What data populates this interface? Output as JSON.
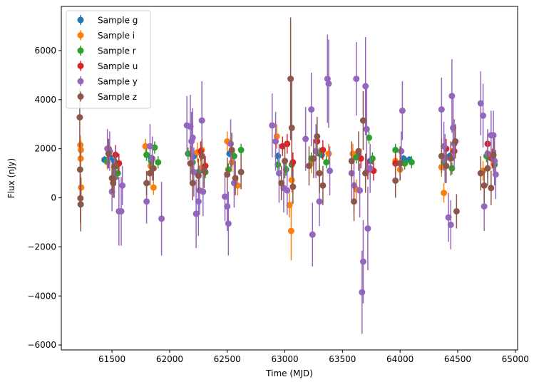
{
  "chart_data": {
    "type": "scatter",
    "title": "",
    "xlabel": "Time (MJD)",
    "ylabel": "Flux (nJy)",
    "xlim": [
      61060,
      65020
    ],
    "ylim": [
      -6200,
      7800
    ],
    "xticks": [
      61500,
      62000,
      62500,
      63000,
      63500,
      64000,
      64500,
      65000
    ],
    "yticks": [
      -6000,
      -4000,
      -2000,
      0,
      2000,
      4000,
      6000
    ],
    "grid": false,
    "legend_position": "top-left",
    "error_bars": true,
    "series": [
      {
        "name": "Sample g",
        "color": "#1f77b4",
        "points": [
          [
            61435,
            1550,
            150
          ],
          [
            61480,
            1650,
            150
          ],
          [
            61520,
            1500,
            150
          ],
          [
            61840,
            1600,
            150
          ],
          [
            62210,
            1700,
            150
          ],
          [
            62520,
            1800,
            150
          ],
          [
            62940,
            1700,
            150
          ],
          [
            63250,
            1600,
            150
          ],
          [
            63320,
            1750,
            150
          ],
          [
            63630,
            1800,
            150
          ],
          [
            63740,
            1500,
            150
          ],
          [
            64030,
            1600,
            150
          ],
          [
            64080,
            1550,
            150
          ],
          [
            64430,
            1700,
            150
          ],
          [
            64780,
            1650,
            150
          ]
        ]
      },
      {
        "name": "Sample i",
        "color": "#ff7f0e",
        "points": [
          [
            61225,
            2150,
            400
          ],
          [
            61230,
            1950,
            400
          ],
          [
            61228,
            1600,
            400
          ],
          [
            61232,
            420,
            400
          ],
          [
            61460,
            1450,
            300
          ],
          [
            61520,
            1250,
            300
          ],
          [
            61560,
            1400,
            300
          ],
          [
            61790,
            2100,
            300
          ],
          [
            61835,
            1300,
            300
          ],
          [
            61860,
            420,
            300
          ],
          [
            62240,
            1850,
            400
          ],
          [
            62280,
            1950,
            400
          ],
          [
            62270,
            1200,
            400
          ],
          [
            62500,
            2300,
            400
          ],
          [
            62540,
            1450,
            400
          ],
          [
            62590,
            500,
            400
          ],
          [
            62930,
            2500,
            500
          ],
          [
            63040,
            -300,
            500
          ],
          [
            63055,
            -1350,
            1200
          ],
          [
            63060,
            720,
            500
          ],
          [
            63230,
            1400,
            400
          ],
          [
            63300,
            1000,
            400
          ],
          [
            63380,
            1800,
            400
          ],
          [
            63590,
            1800,
            400
          ],
          [
            63620,
            350,
            400
          ],
          [
            63700,
            1000,
            400
          ],
          [
            63960,
            1500,
            400
          ],
          [
            64000,
            1150,
            400
          ],
          [
            64360,
            1250,
            400
          ],
          [
            64380,
            200,
            400
          ],
          [
            64460,
            1900,
            400
          ],
          [
            64720,
            1100,
            400
          ],
          [
            64790,
            1700,
            400
          ]
        ]
      },
      {
        "name": "Sample r",
        "color": "#2ca02c",
        "points": [
          [
            61460,
            1500,
            250
          ],
          [
            61520,
            1250,
            250
          ],
          [
            61550,
            1000,
            250
          ],
          [
            61800,
            1750,
            250
          ],
          [
            61840,
            1500,
            250
          ],
          [
            61870,
            2050,
            250
          ],
          [
            61900,
            1450,
            250
          ],
          [
            62160,
            1800,
            250
          ],
          [
            62200,
            1450,
            250
          ],
          [
            62250,
            1050,
            250
          ],
          [
            62310,
            1050,
            250
          ],
          [
            62510,
            1150,
            250
          ],
          [
            62560,
            1700,
            250
          ],
          [
            62620,
            1950,
            250
          ],
          [
            62940,
            1350,
            250
          ],
          [
            63010,
            1150,
            250
          ],
          [
            63060,
            1350,
            250
          ],
          [
            63230,
            1600,
            250
          ],
          [
            63300,
            1800,
            250
          ],
          [
            63360,
            1450,
            250
          ],
          [
            63620,
            1650,
            250
          ],
          [
            63730,
            2450,
            250
          ],
          [
            63760,
            1600,
            250
          ],
          [
            63960,
            1950,
            250
          ],
          [
            64040,
            1400,
            250
          ],
          [
            64100,
            1450,
            250
          ],
          [
            64380,
            1450,
            250
          ],
          [
            64450,
            1200,
            250
          ],
          [
            64750,
            1700,
            250
          ],
          [
            64820,
            1350,
            250
          ]
        ]
      },
      {
        "name": "Sample u",
        "color": "#d62728",
        "points": [
          [
            61470,
            2000,
            400
          ],
          [
            61530,
            1750,
            400
          ],
          [
            61560,
            1400,
            400
          ],
          [
            62270,
            1900,
            400
          ],
          [
            62310,
            1300,
            400
          ],
          [
            62980,
            2100,
            400
          ],
          [
            63020,
            2200,
            400
          ],
          [
            63070,
            1450,
            400
          ],
          [
            63280,
            2300,
            400
          ],
          [
            63330,
            1950,
            400
          ],
          [
            63660,
            1600,
            400
          ],
          [
            63720,
            1150,
            400
          ],
          [
            63770,
            1100,
            400
          ],
          [
            63960,
            1400,
            400
          ],
          [
            64400,
            2000,
            400
          ],
          [
            64470,
            1900,
            400
          ],
          [
            64760,
            2200,
            400
          ],
          [
            64800,
            1600,
            400
          ]
        ]
      },
      {
        "name": "Sample y",
        "color": "#9467bd",
        "points": [
          [
            61460,
            2000,
            800
          ],
          [
            61480,
            1900,
            800
          ],
          [
            61500,
            250,
            800
          ],
          [
            61520,
            800,
            800
          ],
          [
            61530,
            1300,
            800
          ],
          [
            61560,
            -550,
            1400
          ],
          [
            61580,
            -550,
            1400
          ],
          [
            61590,
            500,
            800
          ],
          [
            61800,
            -150,
            900
          ],
          [
            61830,
            2100,
            900
          ],
          [
            61850,
            1600,
            900
          ],
          [
            61930,
            -850,
            1500
          ],
          [
            62150,
            2950,
            1200
          ],
          [
            62180,
            2900,
            1300
          ],
          [
            62190,
            2300,
            1200
          ],
          [
            62200,
            2450,
            1200
          ],
          [
            62210,
            1050,
            1000
          ],
          [
            62230,
            -650,
            1400
          ],
          [
            62250,
            -150,
            1400
          ],
          [
            62260,
            300,
            1000
          ],
          [
            62280,
            3150,
            1600
          ],
          [
            62290,
            250,
            1000
          ],
          [
            62480,
            50,
            1000
          ],
          [
            62500,
            -350,
            1000
          ],
          [
            62510,
            -1050,
            1300
          ],
          [
            62530,
            2200,
            1000
          ],
          [
            62560,
            600,
            1000
          ],
          [
            62890,
            2950,
            1300
          ],
          [
            62920,
            2300,
            1200
          ],
          [
            62950,
            1000,
            1200
          ],
          [
            62990,
            400,
            1000
          ],
          [
            63020,
            300,
            1000
          ],
          [
            63180,
            2400,
            1300
          ],
          [
            63230,
            3600,
            1500
          ],
          [
            63240,
            -1500,
            1300
          ],
          [
            63270,
            1900,
            1100
          ],
          [
            63300,
            -150,
            1000
          ],
          [
            63370,
            4850,
            1800
          ],
          [
            63380,
            4650,
            1800
          ],
          [
            63390,
            1100,
            1000
          ],
          [
            63580,
            1000,
            1100
          ],
          [
            63600,
            500,
            1100
          ],
          [
            63620,
            4850,
            1500
          ],
          [
            63650,
            300,
            1100
          ],
          [
            63670,
            -3850,
            1700
          ],
          [
            63680,
            -2600,
            1700
          ],
          [
            63700,
            4550,
            2000
          ],
          [
            63710,
            2800,
            1700
          ],
          [
            63720,
            -1250,
            1700
          ],
          [
            63740,
            1200,
            1000
          ],
          [
            64020,
            3550,
            1200
          ],
          [
            64010,
            1900,
            800
          ],
          [
            64360,
            3600,
            1300
          ],
          [
            64380,
            2100,
            1000
          ],
          [
            64390,
            1600,
            1000
          ],
          [
            64420,
            -800,
            1000
          ],
          [
            64440,
            -1100,
            1000
          ],
          [
            64450,
            4150,
            1500
          ],
          [
            64460,
            2850,
            1300
          ],
          [
            64470,
            2200,
            1000
          ],
          [
            64700,
            3850,
            1300
          ],
          [
            64720,
            3350,
            1300
          ],
          [
            64730,
            -350,
            1000
          ],
          [
            64760,
            1800,
            1000
          ],
          [
            64790,
            2550,
            1000
          ],
          [
            64810,
            2550,
            1000
          ],
          [
            64820,
            1500,
            1000
          ],
          [
            64830,
            950,
            1000
          ]
        ]
      },
      {
        "name": "Sample z",
        "color": "#8c564b",
        "points": [
          [
            61220,
            3280,
            1200
          ],
          [
            61223,
            1150,
            1100
          ],
          [
            61226,
            -20,
            1000
          ],
          [
            61228,
            -270,
            1100
          ],
          [
            61470,
            1800,
            600
          ],
          [
            61500,
            800,
            600
          ],
          [
            61510,
            600,
            600
          ],
          [
            61530,
            1300,
            600
          ],
          [
            61800,
            600,
            500
          ],
          [
            61830,
            1000,
            500
          ],
          [
            61860,
            1200,
            500
          ],
          [
            62180,
            1400,
            700
          ],
          [
            62200,
            600,
            700
          ],
          [
            62250,
            900,
            700
          ],
          [
            62280,
            1700,
            700
          ],
          [
            62300,
            1100,
            700
          ],
          [
            62500,
            950,
            700
          ],
          [
            62540,
            1950,
            700
          ],
          [
            62570,
            800,
            700
          ],
          [
            62620,
            1050,
            700
          ],
          [
            62970,
            600,
            700
          ],
          [
            63000,
            1500,
            700
          ],
          [
            63050,
            4850,
            2500
          ],
          [
            63060,
            2850,
            2000
          ],
          [
            63070,
            450,
            700
          ],
          [
            63210,
            1300,
            800
          ],
          [
            63250,
            1600,
            800
          ],
          [
            63280,
            2500,
            800
          ],
          [
            63300,
            1000,
            800
          ],
          [
            63330,
            500,
            800
          ],
          [
            63580,
            1500,
            800
          ],
          [
            63600,
            -150,
            800
          ],
          [
            63640,
            1900,
            800
          ],
          [
            63680,
            3150,
            1200
          ],
          [
            63700,
            1000,
            800
          ],
          [
            63960,
            700,
            700
          ],
          [
            64000,
            1400,
            700
          ],
          [
            64360,
            1700,
            700
          ],
          [
            64400,
            1300,
            700
          ],
          [
            64440,
            1600,
            700
          ],
          [
            64480,
            2300,
            700
          ],
          [
            64490,
            -550,
            700
          ],
          [
            64700,
            1000,
            700
          ],
          [
            64730,
            500,
            700
          ],
          [
            64760,
            1200,
            700
          ],
          [
            64790,
            400,
            700
          ],
          [
            64810,
            1750,
            700
          ]
        ]
      }
    ]
  }
}
